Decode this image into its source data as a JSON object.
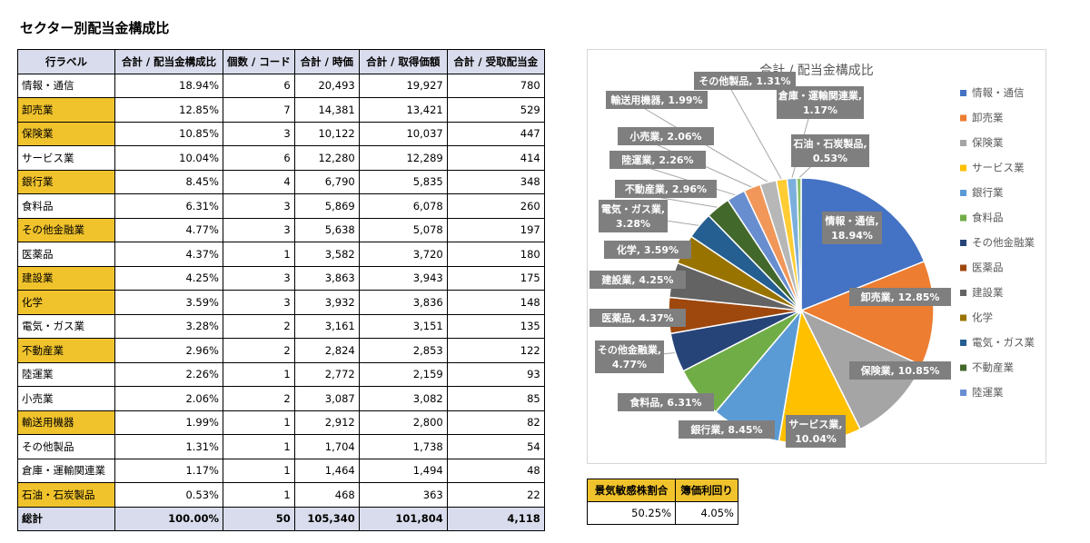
{
  "title": "セクター別配当金構成比",
  "table": {
    "headers": [
      "行ラベル",
      "合計 / 配当金構成比",
      "個数 / コード",
      "合計 / 時価",
      "合計 / 取得価額",
      "合計 / 受取配当金"
    ],
    "rows": [
      {
        "label": "情報・通信",
        "ratio": "18.94%",
        "count": "6",
        "market": "20,493",
        "cost": "19,927",
        "dividend": "780",
        "hl": false
      },
      {
        "label": "卸売業",
        "ratio": "12.85%",
        "count": "7",
        "market": "14,381",
        "cost": "13,421",
        "dividend": "529",
        "hl": true
      },
      {
        "label": "保険業",
        "ratio": "10.85%",
        "count": "3",
        "market": "10,122",
        "cost": "10,037",
        "dividend": "447",
        "hl": true
      },
      {
        "label": "サービス業",
        "ratio": "10.04%",
        "count": "6",
        "market": "12,280",
        "cost": "12,289",
        "dividend": "414",
        "hl": false
      },
      {
        "label": "銀行業",
        "ratio": "8.45%",
        "count": "4",
        "market": "6,790",
        "cost": "5,835",
        "dividend": "348",
        "hl": true
      },
      {
        "label": "食料品",
        "ratio": "6.31%",
        "count": "3",
        "market": "5,869",
        "cost": "6,078",
        "dividend": "260",
        "hl": false
      },
      {
        "label": "その他金融業",
        "ratio": "4.77%",
        "count": "3",
        "market": "5,638",
        "cost": "5,078",
        "dividend": "197",
        "hl": true
      },
      {
        "label": "医薬品",
        "ratio": "4.37%",
        "count": "1",
        "market": "3,582",
        "cost": "3,720",
        "dividend": "180",
        "hl": false
      },
      {
        "label": "建設業",
        "ratio": "4.25%",
        "count": "3",
        "market": "3,863",
        "cost": "3,943",
        "dividend": "175",
        "hl": true
      },
      {
        "label": "化学",
        "ratio": "3.59%",
        "count": "3",
        "market": "3,932",
        "cost": "3,836",
        "dividend": "148",
        "hl": true
      },
      {
        "label": "電気・ガス業",
        "ratio": "3.28%",
        "count": "2",
        "market": "3,161",
        "cost": "3,151",
        "dividend": "135",
        "hl": false
      },
      {
        "label": "不動産業",
        "ratio": "2.96%",
        "count": "2",
        "market": "2,824",
        "cost": "2,853",
        "dividend": "122",
        "hl": true
      },
      {
        "label": "陸運業",
        "ratio": "2.26%",
        "count": "1",
        "market": "2,772",
        "cost": "2,159",
        "dividend": "93",
        "hl": false
      },
      {
        "label": "小売業",
        "ratio": "2.06%",
        "count": "2",
        "market": "3,087",
        "cost": "3,082",
        "dividend": "85",
        "hl": false
      },
      {
        "label": "輸送用機器",
        "ratio": "1.99%",
        "count": "1",
        "market": "2,912",
        "cost": "2,800",
        "dividend": "82",
        "hl": true
      },
      {
        "label": "その他製品",
        "ratio": "1.31%",
        "count": "1",
        "market": "1,704",
        "cost": "1,738",
        "dividend": "54",
        "hl": false
      },
      {
        "label": "倉庫・運輸関連業",
        "ratio": "1.17%",
        "count": "1",
        "market": "1,464",
        "cost": "1,494",
        "dividend": "48",
        "hl": false
      },
      {
        "label": "石油・石炭製品",
        "ratio": "0.53%",
        "count": "1",
        "market": "468",
        "cost": "363",
        "dividend": "22",
        "hl": true
      }
    ],
    "total": {
      "label": "総計",
      "ratio": "100.00%",
      "count": "50",
      "market": "105,340",
      "cost": "101,804",
      "dividend": "4,118"
    },
    "highlight_color": "#f0c32c",
    "header_color": "#d9dcec"
  },
  "kpi": {
    "headers": [
      "景気敏感株割合",
      "簿価利回り"
    ],
    "values": [
      "50.25%",
      "4.05%"
    ]
  },
  "chart_data": {
    "type": "pie",
    "title": "合計 / 配当金構成比",
    "categories": [
      "情報・通信",
      "卸売業",
      "保険業",
      "サービス業",
      "銀行業",
      "食料品",
      "その他金融業",
      "医薬品",
      "建設業",
      "化学",
      "電気・ガス業",
      "不動産業",
      "陸運業",
      "小売業",
      "輸送用機器",
      "その他製品",
      "倉庫・運輸関連業",
      "石油・石炭製品"
    ],
    "values": [
      18.94,
      12.85,
      10.85,
      10.04,
      8.45,
      6.31,
      4.77,
      4.37,
      4.25,
      3.59,
      3.28,
      2.96,
      2.26,
      2.06,
      1.99,
      1.31,
      1.17,
      0.53
    ],
    "data_labels": [
      "情報・通信, 18.94%",
      "卸売業, 12.85%",
      "保険業, 10.85%",
      "サービス業, 10.04%",
      "銀行業, 8.45%",
      "食料品, 6.31%",
      "その他金融業, 4.77%",
      "医薬品, 4.37%",
      "建設業, 4.25%",
      "化学, 3.59%",
      "電気・ガス業, 3.28%",
      "不動産業, 2.96%",
      "陸運業, 2.26%",
      "小売業, 2.06%",
      "輸送用機器, 1.99%",
      "その他製品, 1.31%",
      "倉庫・運輸関連業, 1.17%",
      "石油・石炭製品, 0.53%"
    ],
    "colors": [
      "#4472c4",
      "#ed7d31",
      "#a5a5a5",
      "#ffc000",
      "#5b9bd5",
      "#70ad47",
      "#264478",
      "#9e480e",
      "#636363",
      "#997300",
      "#255e91",
      "#43682b",
      "#698ed0",
      "#f1975a",
      "#b7b7b7",
      "#ffcd33",
      "#7cafdd",
      "#8cc168"
    ],
    "legend": [
      "情報・通信",
      "卸売業",
      "保険業",
      "サービス業",
      "銀行業",
      "食料品",
      "その他金融業",
      "医薬品",
      "建設業",
      "化学",
      "電気・ガス業",
      "不動産業",
      "陸運業"
    ],
    "legend_position": "right"
  }
}
